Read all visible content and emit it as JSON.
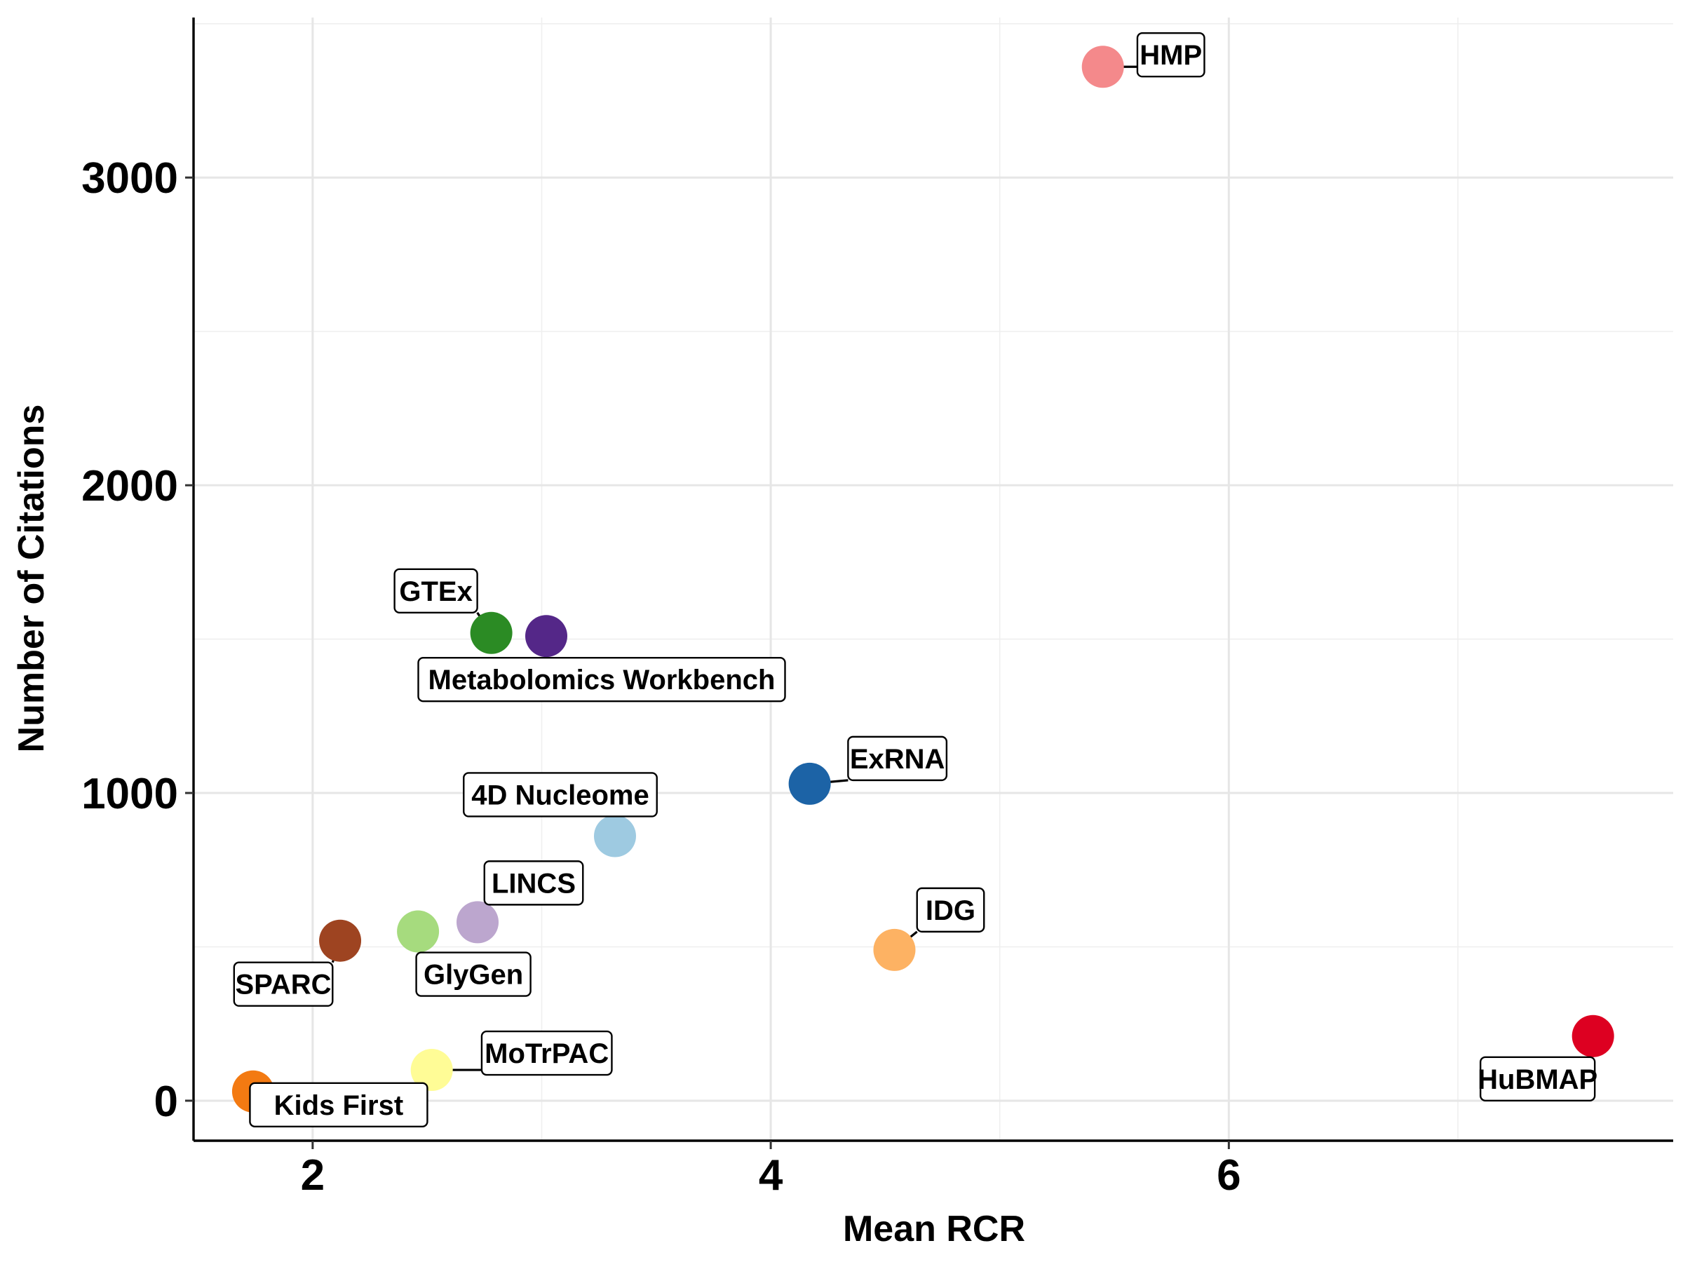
{
  "chart_data": {
    "type": "scatter",
    "title": "",
    "xlabel": "Mean RCR",
    "ylabel": "Number of Citations",
    "xlim": [
      1.48,
      7.94
    ],
    "ylim": [
      -130,
      3520
    ],
    "xticks": [
      2,
      4,
      6
    ],
    "yticks": [
      0,
      1000,
      2000,
      3000
    ],
    "x_tick_labels": [
      "2",
      "4",
      "6"
    ],
    "y_tick_labels": [
      "0",
      "1000",
      "2000",
      "3000"
    ],
    "grid": true,
    "legend": "none",
    "points": [
      {
        "label": "HMP",
        "x": 5.45,
        "y": 3360,
        "color": "#F4898B"
      },
      {
        "label": "GTEx",
        "x": 2.78,
        "y": 1520,
        "color": "#2B8B24"
      },
      {
        "label": "Metabolomics Workbench",
        "x": 3.02,
        "y": 1510,
        "color": "#542788"
      },
      {
        "label": "ExRNA",
        "x": 4.17,
        "y": 1030,
        "color": "#1C63A6"
      },
      {
        "label": "4D Nucleome",
        "x": 3.32,
        "y": 860,
        "color": "#9ECAE1"
      },
      {
        "label": "LINCS",
        "x": 2.72,
        "y": 580,
        "color": "#BCA6CE"
      },
      {
        "label": "GlyGen",
        "x": 2.46,
        "y": 550,
        "color": "#A6DB7E"
      },
      {
        "label": "SPARC",
        "x": 2.12,
        "y": 520,
        "color": "#9E4421"
      },
      {
        "label": "IDG",
        "x": 4.54,
        "y": 490,
        "color": "#FDB263"
      },
      {
        "label": "HuBMAP",
        "x": 7.59,
        "y": 210,
        "color": "#DD0021"
      },
      {
        "label": "MoTrPAC",
        "x": 2.52,
        "y": 100,
        "color": "#FFFC96"
      },
      {
        "label": "Kids First",
        "x": 1.74,
        "y": 30,
        "color": "#F37A12"
      }
    ]
  }
}
